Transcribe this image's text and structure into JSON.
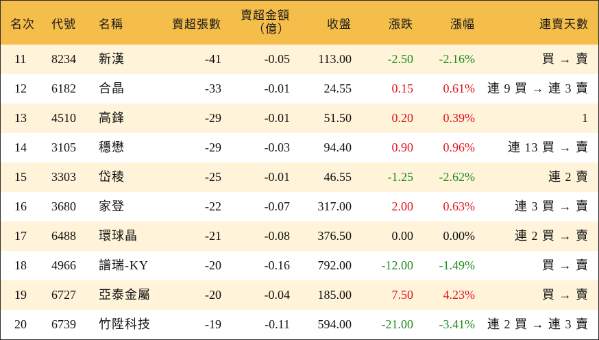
{
  "headers": {
    "rank": "名次",
    "code": "代號",
    "name": "名稱",
    "net_sell_lots": "賣超張數",
    "net_sell_amount_line1": "賣超金額",
    "net_sell_amount_line2": "（億）",
    "close": "收盤",
    "change": "漲跌",
    "change_pct": "漲幅",
    "streak": "連賣天數"
  },
  "colors": {
    "header_bg": "#f5bd4a",
    "row_alt_bg": "#fff4d9",
    "up": "#e0141e",
    "down": "#1f8a1f"
  },
  "rows": [
    {
      "rank": "11",
      "code": "8234",
      "name": "新漢",
      "lots": "-41",
      "amount": "-0.05",
      "close": "113.00",
      "change": "-2.50",
      "pct": "-2.16%",
      "streak": "買 → 賣",
      "dir": "down"
    },
    {
      "rank": "12",
      "code": "6182",
      "name": "合晶",
      "lots": "-33",
      "amount": "-0.01",
      "close": "24.55",
      "change": "0.15",
      "pct": "0.61%",
      "streak": "連 9 買 → 連 3 賣",
      "dir": "up"
    },
    {
      "rank": "13",
      "code": "4510",
      "name": "高鋒",
      "lots": "-29",
      "amount": "-0.01",
      "close": "51.50",
      "change": "0.20",
      "pct": "0.39%",
      "streak": "1",
      "dir": "up"
    },
    {
      "rank": "14",
      "code": "3105",
      "name": "穩懋",
      "lots": "-29",
      "amount": "-0.03",
      "close": "94.40",
      "change": "0.90",
      "pct": "0.96%",
      "streak": "連 13 買 → 賣",
      "dir": "up"
    },
    {
      "rank": "15",
      "code": "3303",
      "name": "岱稜",
      "lots": "-25",
      "amount": "-0.01",
      "close": "46.55",
      "change": "-1.25",
      "pct": "-2.62%",
      "streak": "連 2 賣",
      "dir": "down"
    },
    {
      "rank": "16",
      "code": "3680",
      "name": "家登",
      "lots": "-22",
      "amount": "-0.07",
      "close": "317.00",
      "change": "2.00",
      "pct": "0.63%",
      "streak": "連 3 買 → 賣",
      "dir": "up"
    },
    {
      "rank": "17",
      "code": "6488",
      "name": "環球晶",
      "lots": "-21",
      "amount": "-0.08",
      "close": "376.50",
      "change": "0.00",
      "pct": "0.00%",
      "streak": "連 2 買 → 賣",
      "dir": "flat"
    },
    {
      "rank": "18",
      "code": "4966",
      "name": "譜瑞-KY",
      "lots": "-20",
      "amount": "-0.16",
      "close": "792.00",
      "change": "-12.00",
      "pct": "-1.49%",
      "streak": "買 → 賣",
      "dir": "down"
    },
    {
      "rank": "19",
      "code": "6727",
      "name": "亞泰金屬",
      "lots": "-20",
      "amount": "-0.04",
      "close": "185.00",
      "change": "7.50",
      "pct": "4.23%",
      "streak": "買 → 賣",
      "dir": "up"
    },
    {
      "rank": "20",
      "code": "6739",
      "name": "竹陞科技",
      "lots": "-19",
      "amount": "-0.11",
      "close": "594.00",
      "change": "-21.00",
      "pct": "-3.41%",
      "streak": "連 2 買 → 連 3 賣",
      "dir": "down"
    }
  ]
}
